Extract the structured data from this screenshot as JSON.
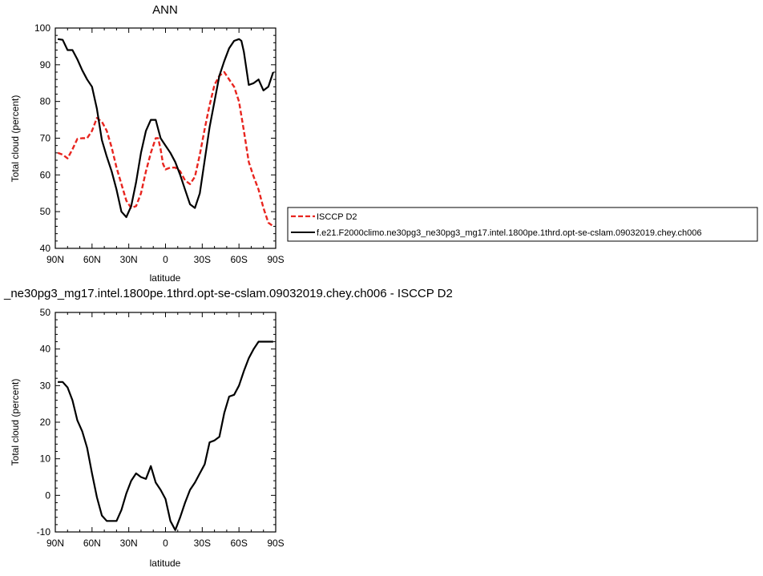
{
  "colors": {
    "model": "#000000",
    "obs": "#e8251f"
  },
  "chart_data": [
    {
      "type": "line",
      "title": "ANN",
      "xlabel": "latitude",
      "ylabel": "Total cloud (percent)",
      "xlim": [
        -90,
        90
      ],
      "ylim": [
        40,
        100
      ],
      "yticks": [
        "40",
        "50",
        "60",
        "70",
        "80",
        "90",
        "100"
      ],
      "xticks": [
        {
          "value": -90,
          "label": "90N"
        },
        {
          "value": -60,
          "label": "60N"
        },
        {
          "value": -30,
          "label": "30N"
        },
        {
          "value": 0,
          "label": "0"
        },
        {
          "value": 30,
          "label": "30S"
        },
        {
          "value": 60,
          "label": "60S"
        },
        {
          "value": 90,
          "label": "90S"
        }
      ],
      "legend": {
        "placement": "right"
      },
      "series": [
        {
          "name": "ISCCP D2",
          "style": "dashed",
          "color": "#e8251f",
          "x": [
            -88,
            -84,
            -80,
            -76,
            -72,
            -68,
            -64,
            -60,
            -56,
            -52,
            -48,
            -44,
            -40,
            -36,
            -32,
            -28,
            -24,
            -20,
            -16,
            -12,
            -8,
            -6,
            -4,
            -2,
            0,
            4,
            8,
            12,
            16,
            20,
            24,
            28,
            32,
            36,
            40,
            44,
            48,
            52,
            56,
            60,
            64,
            68,
            72,
            76,
            80,
            84,
            88
          ],
          "y": [
            66,
            65.5,
            64.5,
            67,
            69.8,
            70,
            70,
            72,
            75.5,
            74.5,
            72,
            67.5,
            62,
            57.5,
            53,
            51,
            51.5,
            55,
            61,
            66,
            70,
            70,
            67,
            63,
            61.5,
            62,
            62,
            61,
            58.5,
            57.5,
            59.5,
            65.5,
            72.5,
            79,
            84.5,
            87,
            88,
            86,
            84,
            80,
            72,
            63.5,
            59.5,
            56,
            51,
            47,
            46
          ]
        },
        {
          "name": "f.e21.F2000climo.ne30pg3_ne30pg3_mg17.intel.1800pe.1thrd.opt-se-cslam.09032019.chey.ch006",
          "style": "solid",
          "color": "#000000",
          "x": [
            -88,
            -84,
            -80,
            -76,
            -72,
            -68,
            -64,
            -60,
            -56,
            -52,
            -48,
            -44,
            -40,
            -36,
            -32,
            -28,
            -24,
            -20,
            -16,
            -12,
            -8,
            -6,
            -4,
            -2,
            0,
            4,
            8,
            12,
            16,
            20,
            24,
            28,
            32,
            36,
            40,
            44,
            48,
            52,
            56,
            60,
            62,
            64,
            68,
            72,
            76,
            80,
            84,
            88
          ],
          "y": [
            97,
            96.8,
            94,
            94,
            91.5,
            88.5,
            86,
            84,
            78,
            69.5,
            65,
            61,
            56,
            50,
            48.5,
            51.5,
            58,
            66,
            72,
            75,
            75,
            72.5,
            70,
            69,
            68,
            66,
            63.5,
            60,
            56,
            52,
            51,
            55,
            64,
            73,
            80,
            87,
            91,
            94.5,
            96.5,
            97,
            96.5,
            93.5,
            84.5,
            85,
            86,
            83,
            84,
            88
          ]
        }
      ]
    },
    {
      "type": "line",
      "title": "_ne30pg3_mg17.intel.1800pe.1thrd.opt-se-cslam.09032019.chey.ch006 - ISCCP D2",
      "xlabel": "latitude",
      "ylabel": "Total cloud (percent)",
      "xlim": [
        -90,
        90
      ],
      "ylim": [
        -10,
        50
      ],
      "yticks": [
        "-10",
        "0",
        "10",
        "20",
        "30",
        "40",
        "50"
      ],
      "xticks": [
        {
          "value": -90,
          "label": "90N"
        },
        {
          "value": -60,
          "label": "60N"
        },
        {
          "value": -30,
          "label": "30N"
        },
        {
          "value": 0,
          "label": "0"
        },
        {
          "value": 30,
          "label": "30S"
        },
        {
          "value": 60,
          "label": "60S"
        },
        {
          "value": 90,
          "label": "90S"
        }
      ],
      "series": [
        {
          "style": "solid",
          "color": "#000000",
          "x": [
            -88,
            -84,
            -80,
            -76,
            -72,
            -68,
            -64,
            -60,
            -56,
            -52,
            -48,
            -44,
            -40,
            -36,
            -32,
            -28,
            -24,
            -20,
            -16,
            -12,
            -8,
            -4,
            0,
            4,
            8,
            12,
            16,
            20,
            24,
            28,
            32,
            36,
            40,
            44,
            48,
            52,
            56,
            60,
            64,
            68,
            72,
            76,
            80,
            84,
            88
          ],
          "y": [
            31,
            31,
            29.5,
            26,
            20.5,
            17.5,
            13,
            6,
            -0.5,
            -5.5,
            -7,
            -7,
            -7,
            -4,
            0.5,
            4,
            6,
            5,
            4.5,
            8,
            3.5,
            1.5,
            -1,
            -7,
            -9.5,
            -6,
            -2,
            1.5,
            3.5,
            6,
            8.5,
            14.5,
            15,
            16,
            22.5,
            27,
            27.5,
            30,
            34,
            37.5,
            40,
            42,
            42,
            42,
            42
          ]
        }
      ]
    }
  ]
}
